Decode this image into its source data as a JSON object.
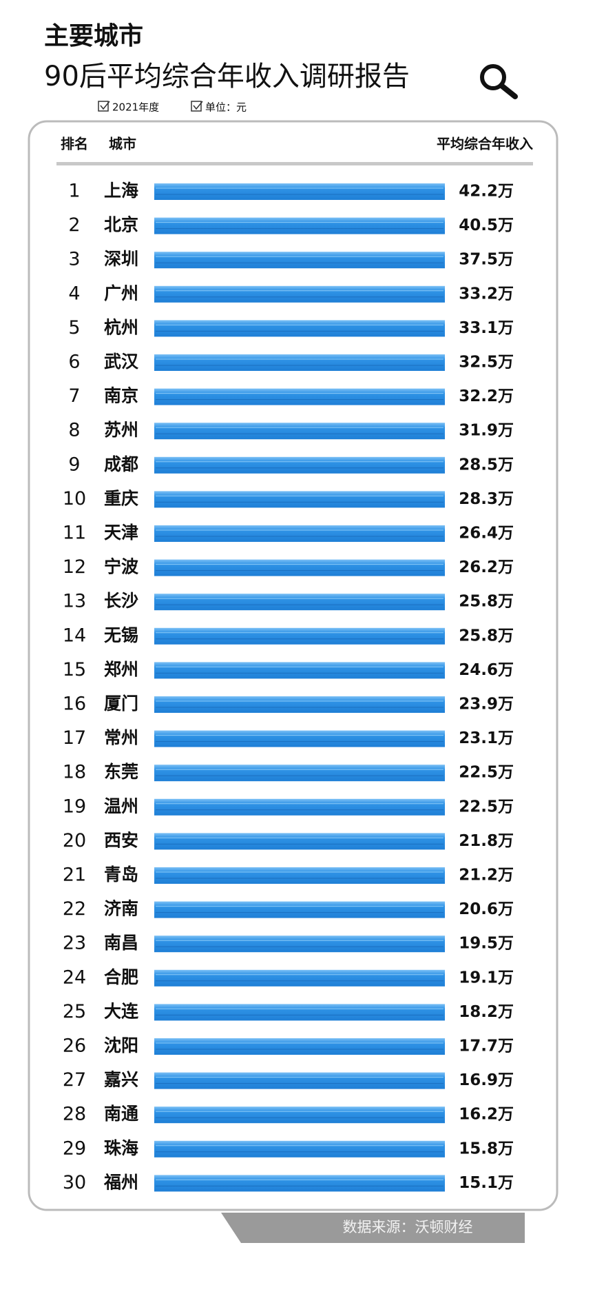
{
  "header": {
    "title": "主要城市",
    "subtitle": "90后平均综合年收入调研报告",
    "notes": [
      "2021年度",
      "单位：元"
    ]
  },
  "table": {
    "columns": [
      "排名",
      "城市",
      "平均综合年收入"
    ],
    "rows": [
      [
        "1",
        "上海",
        "42.2万"
      ],
      [
        "2",
        "北京",
        "40.5万"
      ],
      [
        "3",
        "深圳",
        "37.5万"
      ],
      [
        "4",
        "广州",
        "33.2万"
      ],
      [
        "5",
        "杭州",
        "33.1万"
      ],
      [
        "6",
        "武汉",
        "32.5万"
      ],
      [
        "7",
        "南京",
        "32.2万"
      ],
      [
        "8",
        "苏州",
        "31.9万"
      ],
      [
        "9",
        "成都",
        "28.5万"
      ],
      [
        "10",
        "重庆",
        "28.3万"
      ],
      [
        "11",
        "天津",
        "26.4万"
      ],
      [
        "12",
        "宁波",
        "26.2万"
      ],
      [
        "13",
        "长沙",
        "25.8万"
      ],
      [
        "14",
        "无锡",
        "25.8万"
      ],
      [
        "15",
        "郑州",
        "24.6万"
      ],
      [
        "16",
        "厦门",
        "23.9万"
      ],
      [
        "17",
        "常州",
        "23.1万"
      ],
      [
        "18",
        "东莞",
        "22.5万"
      ],
      [
        "19",
        "温州",
        "22.5万"
      ],
      [
        "20",
        "西安",
        "21.8万"
      ],
      [
        "21",
        "青岛",
        "21.2万"
      ],
      [
        "22",
        "济南",
        "20.6万"
      ],
      [
        "23",
        "南昌",
        "19.5万"
      ],
      [
        "24",
        "合肥",
        "19.1万"
      ],
      [
        "25",
        "大连",
        "18.2万"
      ],
      [
        "26",
        "沈阳",
        "17.7万"
      ],
      [
        "27",
        "嘉兴",
        "16.9万"
      ],
      [
        "28",
        "南通",
        "16.2万"
      ],
      [
        "29",
        "珠海",
        "15.8万"
      ],
      [
        "30",
        "福州",
        "15.1万"
      ]
    ]
  },
  "footer": {
    "source": "数据来源：沃顿财经"
  }
}
